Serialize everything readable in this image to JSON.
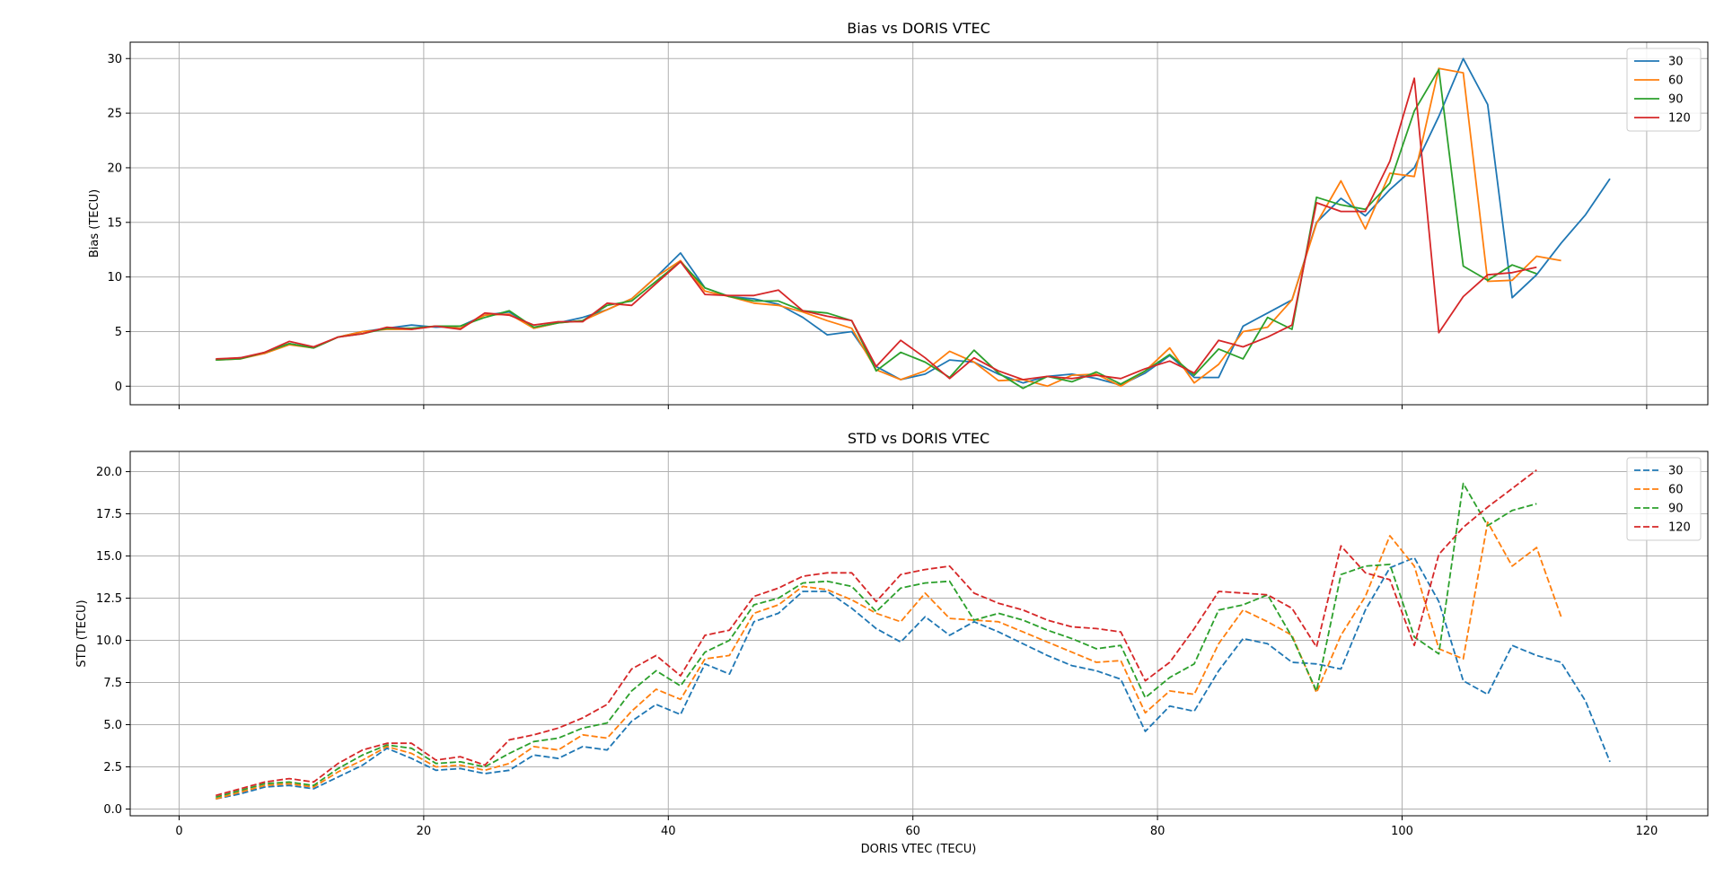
{
  "chart_data": [
    {
      "type": "line",
      "title": "Bias vs DORIS VTEC",
      "xlabel": "",
      "ylabel": "Bias (TECU)",
      "xlim": [
        -4,
        125
      ],
      "ylim": [
        -1.7,
        31.5
      ],
      "xticks": [
        0,
        20,
        40,
        60,
        80,
        100,
        120
      ],
      "show_x_tick_labels": false,
      "yticks": [
        0,
        5,
        10,
        15,
        20,
        25,
        30
      ],
      "grid": true,
      "legend": "top-right",
      "line_style": "solid",
      "series": [
        {
          "name": "30",
          "color": "#1f77b4",
          "x": [
            3,
            5,
            7,
            9,
            11,
            13,
            15,
            17,
            19,
            21,
            23,
            25,
            27,
            29,
            31,
            33,
            35,
            37,
            39,
            41,
            43,
            45,
            47,
            49,
            51,
            53,
            55,
            57,
            59,
            61,
            63,
            65,
            67,
            69,
            71,
            73,
            75,
            77,
            79,
            81,
            83,
            85,
            87,
            89,
            91,
            93,
            95,
            97,
            99,
            101,
            103,
            105,
            107,
            109,
            111,
            113,
            115,
            117
          ],
          "y": [
            2.4,
            2.6,
            3.0,
            3.9,
            3.5,
            4.5,
            5.0,
            5.3,
            5.6,
            5.4,
            5.5,
            6.5,
            6.8,
            5.3,
            5.8,
            6.3,
            7.0,
            8.0,
            10.0,
            12.2,
            9.0,
            8.2,
            8.0,
            7.5,
            6.3,
            4.7,
            5.0,
            1.8,
            0.6,
            1.1,
            2.4,
            2.2,
            1.1,
            0.3,
            0.9,
            1.1,
            0.7,
            0.1,
            1.2,
            2.8,
            0.8,
            0.8,
            5.5,
            6.7,
            7.9,
            15.0,
            17.2,
            15.6,
            18.0,
            20.0,
            24.7,
            30.0,
            25.8,
            8.1,
            10.2,
            13.1,
            15.7,
            19.0
          ]
        },
        {
          "name": "60",
          "color": "#ff7f0e",
          "x": [
            3,
            5,
            7,
            9,
            11,
            13,
            15,
            17,
            19,
            21,
            23,
            25,
            27,
            29,
            31,
            33,
            35,
            37,
            39,
            41,
            43,
            45,
            47,
            49,
            51,
            53,
            55,
            57,
            59,
            61,
            63,
            65,
            67,
            69,
            71,
            73,
            75,
            77,
            79,
            81,
            83,
            85,
            87,
            89,
            91,
            93,
            95,
            97,
            99,
            101,
            103,
            105,
            107,
            109,
            111,
            113
          ],
          "y": [
            2.4,
            2.5,
            3.0,
            3.8,
            3.5,
            4.5,
            5.0,
            5.2,
            5.2,
            5.5,
            5.3,
            6.5,
            6.6,
            5.3,
            5.8,
            6.0,
            7.0,
            8.0,
            10.0,
            11.5,
            8.7,
            8.2,
            7.6,
            7.4,
            6.8,
            6.0,
            5.3,
            1.5,
            0.6,
            1.4,
            3.2,
            2.2,
            0.5,
            0.6,
            0.0,
            1.0,
            1.1,
            0.0,
            1.4,
            3.5,
            0.3,
            2.0,
            5.0,
            5.4,
            7.9,
            14.9,
            18.8,
            14.4,
            19.5,
            19.2,
            29.1,
            28.7,
            9.6,
            9.7,
            11.9,
            11.5
          ]
        },
        {
          "name": "90",
          "color": "#2ca02c",
          "x": [
            3,
            5,
            7,
            9,
            11,
            13,
            15,
            17,
            19,
            21,
            23,
            25,
            27,
            29,
            31,
            33,
            35,
            37,
            39,
            41,
            43,
            45,
            47,
            49,
            51,
            53,
            55,
            57,
            59,
            61,
            63,
            65,
            67,
            69,
            71,
            73,
            75,
            77,
            79,
            81,
            83,
            85,
            87,
            89,
            91,
            93,
            95,
            97,
            99,
            101,
            103,
            105,
            107,
            109,
            111
          ],
          "y": [
            2.4,
            2.5,
            3.1,
            3.9,
            3.5,
            4.5,
            4.8,
            5.3,
            5.3,
            5.5,
            5.5,
            6.3,
            6.9,
            5.4,
            5.8,
            6.0,
            7.4,
            7.8,
            9.6,
            11.4,
            9.0,
            8.2,
            7.8,
            7.8,
            6.9,
            6.7,
            6.0,
            1.4,
            3.1,
            2.2,
            0.8,
            3.3,
            1.2,
            -0.2,
            0.9,
            0.4,
            1.3,
            0.2,
            1.4,
            2.9,
            1.0,
            3.4,
            2.5,
            6.3,
            5.2,
            17.3,
            16.6,
            16.2,
            18.6,
            25.2,
            29.0,
            11.0,
            9.7,
            11.1,
            10.3
          ]
        },
        {
          "name": "120",
          "color": "#d62728",
          "x": [
            3,
            5,
            7,
            9,
            11,
            13,
            15,
            17,
            19,
            21,
            23,
            25,
            27,
            29,
            31,
            33,
            35,
            37,
            39,
            41,
            43,
            45,
            47,
            49,
            51,
            53,
            55,
            57,
            59,
            61,
            63,
            65,
            67,
            69,
            71,
            73,
            75,
            77,
            79,
            81,
            83,
            85,
            87,
            89,
            91,
            93,
            95,
            97,
            99,
            101,
            103,
            105,
            107,
            109,
            111
          ],
          "y": [
            2.5,
            2.6,
            3.1,
            4.1,
            3.6,
            4.5,
            4.8,
            5.4,
            5.2,
            5.5,
            5.2,
            6.7,
            6.5,
            5.6,
            5.9,
            5.9,
            7.6,
            7.4,
            9.4,
            11.4,
            8.4,
            8.3,
            8.3,
            8.8,
            6.9,
            6.4,
            6.0,
            1.8,
            4.2,
            2.6,
            0.7,
            2.6,
            1.4,
            0.6,
            0.9,
            0.7,
            1.0,
            0.7,
            1.6,
            2.3,
            1.2,
            4.2,
            3.6,
            4.5,
            5.6,
            16.8,
            16.0,
            16.0,
            20.6,
            28.2,
            4.9,
            8.2,
            10.2,
            10.4,
            10.9
          ]
        }
      ]
    },
    {
      "type": "line",
      "title": "STD vs DORIS VTEC",
      "xlabel": "DORIS VTEC (TECU)",
      "ylabel": "STD (TECU)",
      "xlim": [
        -4,
        125
      ],
      "ylim": [
        -0.4,
        21.2
      ],
      "xticks": [
        0,
        20,
        40,
        60,
        80,
        100,
        120
      ],
      "show_x_tick_labels": true,
      "yticks": [
        0.0,
        2.5,
        5.0,
        7.5,
        10.0,
        12.5,
        15.0,
        17.5,
        20.0
      ],
      "ytick_labels": [
        "0.0",
        "2.5",
        "5.0",
        "7.5",
        "10.0",
        "12.5",
        "15.0",
        "17.5",
        "20.0"
      ],
      "grid": true,
      "legend": "top-right",
      "line_style": "dashed",
      "series": [
        {
          "name": "30",
          "color": "#1f77b4",
          "x": [
            3,
            5,
            7,
            9,
            11,
            13,
            15,
            17,
            19,
            21,
            23,
            25,
            27,
            29,
            31,
            33,
            35,
            37,
            39,
            41,
            43,
            45,
            47,
            49,
            51,
            53,
            55,
            57,
            59,
            61,
            63,
            65,
            67,
            69,
            71,
            73,
            75,
            77,
            79,
            81,
            83,
            85,
            87,
            89,
            91,
            93,
            95,
            97,
            99,
            101,
            103,
            105,
            107,
            109,
            111,
            113,
            115,
            117
          ],
          "y": [
            0.6,
            0.9,
            1.3,
            1.4,
            1.2,
            1.9,
            2.6,
            3.6,
            3.0,
            2.3,
            2.4,
            2.1,
            2.3,
            3.2,
            3.0,
            3.7,
            3.5,
            5.2,
            6.2,
            5.6,
            8.6,
            8.0,
            11.1,
            11.6,
            12.9,
            12.9,
            11.9,
            10.7,
            9.9,
            11.4,
            10.3,
            11.1,
            10.5,
            9.8,
            9.1,
            8.5,
            8.2,
            7.7,
            4.6,
            6.1,
            5.8,
            8.2,
            10.1,
            9.8,
            8.7,
            8.6,
            8.3,
            11.8,
            14.3,
            14.9,
            12.3,
            7.6,
            6.8,
            9.7,
            9.1,
            8.7,
            6.4,
            2.8
          ]
        },
        {
          "name": "60",
          "color": "#ff7f0e",
          "x": [
            3,
            5,
            7,
            9,
            11,
            13,
            15,
            17,
            19,
            21,
            23,
            25,
            27,
            29,
            31,
            33,
            35,
            37,
            39,
            41,
            43,
            45,
            47,
            49,
            51,
            53,
            55,
            57,
            59,
            61,
            63,
            65,
            67,
            69,
            71,
            73,
            75,
            77,
            79,
            81,
            83,
            85,
            87,
            89,
            91,
            93,
            95,
            97,
            99,
            101,
            103,
            105,
            107,
            109,
            111,
            113
          ],
          "y": [
            0.6,
            1.0,
            1.4,
            1.5,
            1.3,
            2.2,
            2.9,
            3.7,
            3.3,
            2.5,
            2.6,
            2.3,
            2.7,
            3.7,
            3.5,
            4.4,
            4.2,
            5.8,
            7.1,
            6.5,
            8.9,
            9.1,
            11.6,
            12.1,
            13.2,
            13.0,
            12.4,
            11.6,
            11.1,
            12.8,
            11.3,
            11.2,
            11.1,
            10.5,
            9.9,
            9.3,
            8.7,
            8.8,
            5.7,
            7.0,
            6.8,
            9.8,
            11.8,
            11.1,
            10.3,
            6.9,
            10.3,
            12.6,
            16.2,
            14.4,
            9.5,
            8.9,
            17.0,
            14.4,
            15.5,
            11.4
          ]
        },
        {
          "name": "90",
          "color": "#2ca02c",
          "x": [
            3,
            5,
            7,
            9,
            11,
            13,
            15,
            17,
            19,
            21,
            23,
            25,
            27,
            29,
            31,
            33,
            35,
            37,
            39,
            41,
            43,
            45,
            47,
            49,
            51,
            53,
            55,
            57,
            59,
            61,
            63,
            65,
            67,
            69,
            71,
            73,
            75,
            77,
            79,
            81,
            83,
            85,
            87,
            89,
            91,
            93,
            95,
            97,
            99,
            101,
            103,
            105,
            107,
            109,
            111
          ],
          "y": [
            0.7,
            1.1,
            1.5,
            1.6,
            1.4,
            2.4,
            3.2,
            3.8,
            3.6,
            2.7,
            2.8,
            2.5,
            3.3,
            4.0,
            4.2,
            4.8,
            5.1,
            7.0,
            8.2,
            7.3,
            9.3,
            10.0,
            12.1,
            12.5,
            13.4,
            13.5,
            13.2,
            11.7,
            13.1,
            13.4,
            13.5,
            11.2,
            11.6,
            11.2,
            10.6,
            10.1,
            9.5,
            9.7,
            6.6,
            7.8,
            8.6,
            11.8,
            12.1,
            12.7,
            10.2,
            7.0,
            13.9,
            14.4,
            14.5,
            10.2,
            9.2,
            19.3,
            16.8,
            17.7,
            18.1
          ]
        },
        {
          "name": "120",
          "color": "#d62728",
          "x": [
            3,
            5,
            7,
            9,
            11,
            13,
            15,
            17,
            19,
            21,
            23,
            25,
            27,
            29,
            31,
            33,
            35,
            37,
            39,
            41,
            43,
            45,
            47,
            49,
            51,
            53,
            55,
            57,
            59,
            61,
            63,
            65,
            67,
            69,
            71,
            73,
            75,
            77,
            79,
            81,
            83,
            85,
            87,
            89,
            91,
            93,
            95,
            97,
            99,
            101,
            103,
            105,
            107,
            109,
            111
          ],
          "y": [
            0.8,
            1.2,
            1.6,
            1.8,
            1.6,
            2.7,
            3.5,
            3.9,
            3.9,
            2.9,
            3.1,
            2.6,
            4.1,
            4.4,
            4.8,
            5.4,
            6.2,
            8.3,
            9.1,
            7.9,
            10.3,
            10.6,
            12.6,
            13.1,
            13.8,
            14.0,
            14.0,
            12.3,
            13.9,
            14.2,
            14.4,
            12.8,
            12.2,
            11.8,
            11.2,
            10.8,
            10.7,
            10.5,
            7.6,
            8.7,
            10.7,
            12.9,
            12.8,
            12.7,
            11.9,
            9.6,
            15.6,
            14.0,
            13.6,
            9.7,
            15.1,
            16.7,
            17.9,
            19.0,
            20.1
          ]
        }
      ]
    }
  ]
}
